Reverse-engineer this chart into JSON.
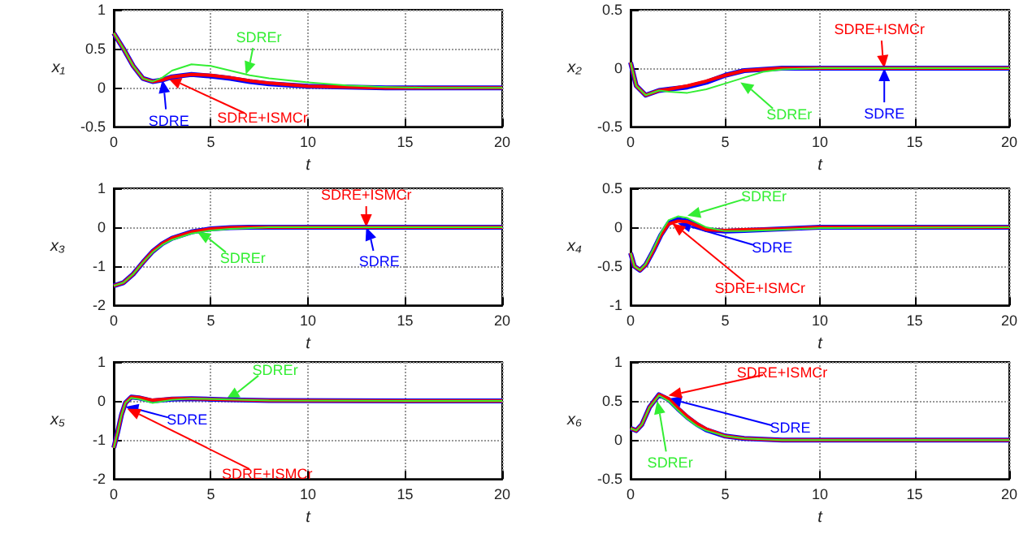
{
  "chart_data": [
    {
      "type": "line",
      "xlabel": "t",
      "ylabel": "x₁",
      "xlim": [
        0,
        20
      ],
      "ylim": [
        -0.5,
        1
      ],
      "xticks": [
        0,
        5,
        10,
        15,
        20
      ],
      "yticks": [
        -0.5,
        0,
        0.5,
        1
      ],
      "grid": true,
      "marker": "none",
      "x": [
        0,
        0.5,
        1,
        1.5,
        2,
        2.5,
        3,
        4,
        5,
        6,
        7,
        8,
        10,
        12,
        14,
        16,
        20
      ],
      "series": [
        {
          "color": "#0000ff",
          "values": [
            0.7,
            0.5,
            0.28,
            0.12,
            0.08,
            0.1,
            0.14,
            0.17,
            0.15,
            0.12,
            0.08,
            0.05,
            0.02,
            0.01,
            0,
            0,
            0
          ]
        },
        {
          "color": "#ff0000",
          "values": [
            0.7,
            0.5,
            0.28,
            0.12,
            0.08,
            0.1,
            0.14,
            0.17,
            0.16,
            0.13,
            0.09,
            0.06,
            0.02,
            0.01,
            0,
            0,
            0
          ]
        },
        {
          "color": "#33ee33",
          "values": [
            0.7,
            0.5,
            0.28,
            0.12,
            0.08,
            0.13,
            0.22,
            0.3,
            0.28,
            0.22,
            0.16,
            0.12,
            0.07,
            0.03,
            0.01,
            0,
            0
          ]
        }
      ],
      "annotations": [
        {
          "text": "SDRE",
          "x": 2.5,
          "y": 0.1
        },
        {
          "text": "SDRE+ISMCr",
          "x": 2.8,
          "y": 0.12
        },
        {
          "text": "SDREr",
          "x": 6.8,
          "y": 0.17
        }
      ]
    },
    {
      "type": "line",
      "xlabel": "t",
      "ylabel": "x₂",
      "xlim": [
        0,
        20
      ],
      "ylim": [
        -0.5,
        0.5
      ],
      "xticks": [
        0,
        5,
        10,
        15,
        20
      ],
      "yticks": [
        -0.5,
        0,
        0.5
      ],
      "grid": true,
      "marker": "none",
      "x": [
        0,
        0.3,
        0.8,
        1.5,
        2,
        3,
        4,
        5,
        6,
        7,
        8,
        10,
        20
      ],
      "series": [
        {
          "color": "#0000ff",
          "values": [
            0.05,
            -0.15,
            -0.23,
            -0.19,
            -0.18,
            -0.16,
            -0.12,
            -0.06,
            -0.02,
            -0.01,
            0,
            0,
            0
          ]
        },
        {
          "color": "#ff0000",
          "values": [
            0.05,
            -0.15,
            -0.23,
            -0.19,
            -0.18,
            -0.15,
            -0.11,
            -0.06,
            -0.02,
            -0.01,
            0,
            0,
            0
          ]
        },
        {
          "color": "#33ee33",
          "values": [
            0.05,
            -0.15,
            -0.23,
            -0.19,
            -0.2,
            -0.21,
            -0.18,
            -0.13,
            -0.08,
            -0.03,
            -0.01,
            0,
            0
          ]
        }
      ],
      "annotations": [
        {
          "text": "SDRE",
          "x": 13.4,
          "y": 0
        },
        {
          "text": "SDRE+ISMCr",
          "x": 13.4,
          "y": 0
        },
        {
          "text": "SDREr",
          "x": 5.8,
          "y": -0.12
        }
      ]
    },
    {
      "type": "line",
      "xlabel": "t",
      "ylabel": "x₃",
      "xlim": [
        0,
        20
      ],
      "ylim": [
        -2,
        1
      ],
      "xticks": [
        0,
        5,
        10,
        15,
        20
      ],
      "yticks": [
        -2,
        -1,
        0,
        1
      ],
      "grid": true,
      "marker": "none",
      "x": [
        0,
        0.5,
        1,
        1.5,
        2,
        2.5,
        3,
        4,
        5,
        6,
        7,
        8,
        20
      ],
      "series": [
        {
          "color": "#0000ff",
          "values": [
            -1.5,
            -1.42,
            -1.2,
            -0.9,
            -0.62,
            -0.42,
            -0.28,
            -0.12,
            -0.04,
            -0.01,
            0,
            0,
            0
          ]
        },
        {
          "color": "#ff0000",
          "values": [
            -1.5,
            -1.42,
            -1.2,
            -0.9,
            -0.62,
            -0.42,
            -0.28,
            -0.12,
            -0.04,
            -0.01,
            0,
            0,
            0
          ]
        },
        {
          "color": "#33ee33",
          "values": [
            -1.5,
            -1.42,
            -1.2,
            -0.9,
            -0.64,
            -0.45,
            -0.32,
            -0.16,
            -0.08,
            -0.04,
            -0.02,
            0,
            0
          ]
        }
      ],
      "annotations": [
        {
          "text": "SDRE",
          "x": 13,
          "y": 0
        },
        {
          "text": "SDRE+ISMCr",
          "x": 13,
          "y": 0
        },
        {
          "text": "SDREr",
          "x": 4.3,
          "y": -0.12
        }
      ]
    },
    {
      "type": "line",
      "xlabel": "t",
      "ylabel": "x₄",
      "xlim": [
        0,
        20
      ],
      "ylim": [
        -1,
        0.5
      ],
      "xticks": [
        0,
        5,
        10,
        15,
        20
      ],
      "yticks": [
        -1,
        -0.5,
        0,
        0.5
      ],
      "grid": true,
      "marker": "none",
      "x": [
        0,
        0.2,
        0.5,
        0.8,
        1.2,
        1.6,
        2,
        2.5,
        3,
        3.5,
        4,
        5,
        6,
        8,
        10,
        20
      ],
      "series": [
        {
          "color": "#0000ff",
          "values": [
            -0.33,
            -0.5,
            -0.55,
            -0.48,
            -0.3,
            -0.1,
            0.05,
            0.1,
            0.08,
            0.02,
            -0.03,
            -0.05,
            -0.04,
            -0.02,
            0,
            0
          ]
        },
        {
          "color": "#ff0000",
          "values": [
            -0.33,
            -0.5,
            -0.55,
            -0.48,
            -0.3,
            -0.1,
            0.04,
            0.08,
            0.07,
            0.02,
            -0.03,
            -0.04,
            -0.03,
            -0.02,
            0,
            0
          ]
        },
        {
          "color": "#33ee33",
          "values": [
            -0.33,
            -0.5,
            -0.55,
            -0.47,
            -0.28,
            -0.07,
            0.09,
            0.14,
            0.12,
            0.06,
            0,
            -0.05,
            -0.05,
            -0.03,
            -0.01,
            0
          ]
        }
      ],
      "annotations": [
        {
          "text": "SDRE",
          "x": 2.5,
          "y": 0.05
        },
        {
          "text": "SDRE+ISMCr",
          "x": 2.2,
          "y": 0.05
        },
        {
          "text": "SDREr",
          "x": 3,
          "y": 0.15
        }
      ]
    },
    {
      "type": "line",
      "xlabel": "t",
      "ylabel": "x₅",
      "xlim": [
        0,
        20
      ],
      "ylim": [
        -2,
        1
      ],
      "xticks": [
        0,
        5,
        10,
        15,
        20
      ],
      "yticks": [
        -2,
        -1,
        0,
        1
      ],
      "grid": true,
      "marker": "none",
      "x": [
        0,
        0.2,
        0.4,
        0.6,
        0.9,
        1.3,
        2,
        3,
        4,
        6,
        8,
        20
      ],
      "series": [
        {
          "color": "#0000ff",
          "values": [
            -1.2,
            -0.8,
            -0.35,
            -0.05,
            0.1,
            0.08,
            0,
            0.05,
            0.06,
            0.03,
            0.01,
            0
          ]
        },
        {
          "color": "#ff0000",
          "values": [
            -1.2,
            -0.8,
            -0.35,
            -0.05,
            0.1,
            0.09,
            0.02,
            0.06,
            0.06,
            0.03,
            0.01,
            0
          ]
        },
        {
          "color": "#33ee33",
          "values": [
            -1.2,
            -0.8,
            -0.35,
            -0.05,
            0.08,
            0.05,
            -0.05,
            0.03,
            0.06,
            0.04,
            0.01,
            0
          ]
        }
      ],
      "annotations": [
        {
          "text": "SDRE",
          "x": 0.6,
          "y": -0.15
        },
        {
          "text": "SDRE+ISMCr",
          "x": 0.7,
          "y": -0.2
        },
        {
          "text": "SDREr",
          "x": 5.8,
          "y": 0.05
        }
      ]
    },
    {
      "type": "line",
      "xlabel": "t",
      "ylabel": "x₆",
      "xlim": [
        0,
        20
      ],
      "ylim": [
        -0.5,
        1
      ],
      "xticks": [
        0,
        5,
        10,
        15,
        20
      ],
      "yticks": [
        -0.5,
        0,
        0.5,
        1
      ],
      "grid": true,
      "marker": "none",
      "x": [
        0,
        0.3,
        0.6,
        1,
        1.5,
        2,
        2.5,
        3,
        3.5,
        4,
        5,
        6,
        8,
        20
      ],
      "series": [
        {
          "color": "#0000ff",
          "values": [
            0.15,
            0.12,
            0.2,
            0.42,
            0.58,
            0.52,
            0.4,
            0.29,
            0.2,
            0.13,
            0.05,
            0.02,
            0,
            0
          ]
        },
        {
          "color": "#ff0000",
          "values": [
            0.15,
            0.12,
            0.2,
            0.42,
            0.58,
            0.53,
            0.41,
            0.3,
            0.21,
            0.14,
            0.05,
            0.02,
            0,
            0
          ]
        },
        {
          "color": "#33ee33",
          "values": [
            0.15,
            0.12,
            0.2,
            0.42,
            0.57,
            0.5,
            0.38,
            0.27,
            0.18,
            0.12,
            0.05,
            0.02,
            0,
            0
          ]
        }
      ],
      "annotations": [
        {
          "text": "SDRE",
          "x": 2,
          "y": 0.53
        },
        {
          "text": "SDRE+ISMCr",
          "x": 2,
          "y": 0.57
        },
        {
          "text": "SDREr",
          "x": 1.4,
          "y": 0.5
        }
      ]
    }
  ]
}
